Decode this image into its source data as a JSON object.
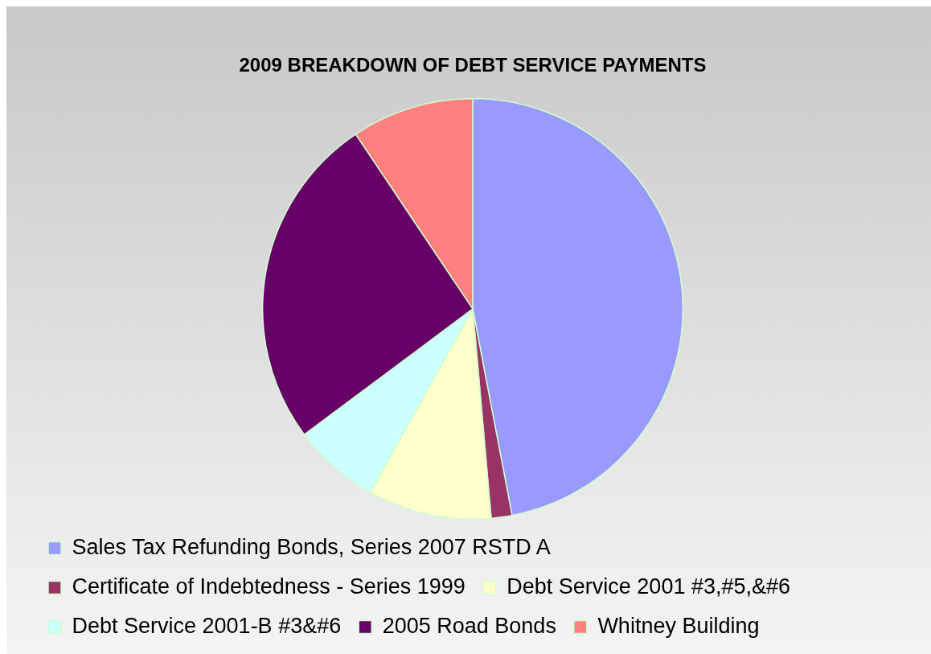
{
  "chart_data": {
    "type": "pie",
    "title": "2009 BREAKDOWN OF DEBT SERVICE PAYMENTS",
    "categories": [
      "Sales Tax Refunding Bonds, Series 2007 RSTD A",
      "Certificate of Indebtedness - Series 1999",
      "Debt Service 2001 #3,#5,&#6",
      "Debt Service 2001-B #3&#6",
      "2005 Road Bonds",
      "Whitney Building"
    ],
    "values": [
      47.0,
      1.6,
      9.5,
      6.7,
      25.8,
      9.4
    ],
    "colors": [
      "#9999ff",
      "#993366",
      "#ffffcc",
      "#ccffff",
      "#660066",
      "#ff8080"
    ],
    "legend": "bottom"
  }
}
